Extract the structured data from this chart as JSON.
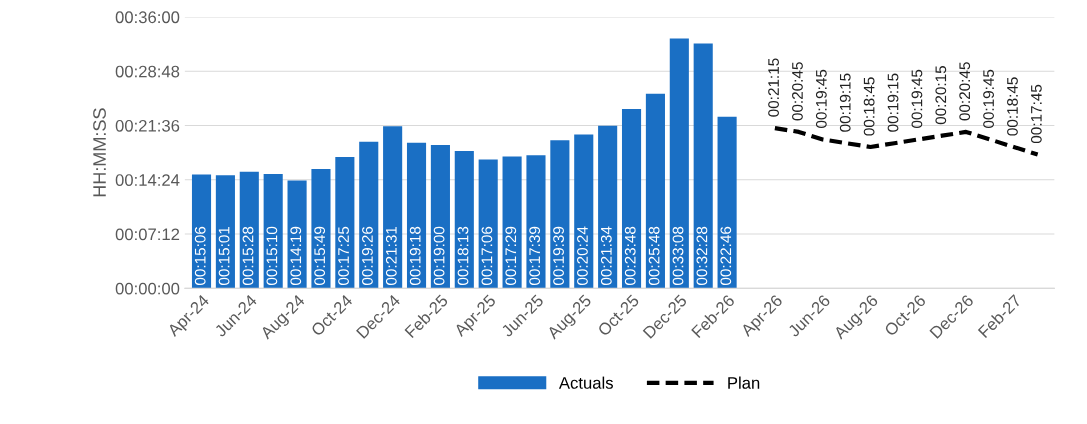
{
  "chart_data": {
    "type": "bar",
    "ylabel": "HH:MM:SS",
    "categories": [
      "Apr-24",
      null,
      "Jun-24",
      null,
      "Aug-24",
      null,
      "Oct-24",
      null,
      "Dec-24",
      null,
      "Feb-25",
      null,
      "Apr-25",
      null,
      "Jun-25",
      null,
      "Aug-25",
      null,
      "Oct-25",
      null,
      "Dec-25",
      null,
      "Feb-26",
      null,
      "Apr-26",
      null,
      "Jun-26",
      null,
      "Aug-26",
      null,
      "Oct-26",
      null,
      "Dec-26",
      null,
      "Feb-27",
      null
    ],
    "ylim": [
      0,
      2160
    ],
    "yticks": [
      {
        "value": 0,
        "label": "00:00:00"
      },
      {
        "value": 432,
        "label": "00:07:12"
      },
      {
        "value": 864,
        "label": "00:14:24"
      },
      {
        "value": 1296,
        "label": "00:21:36"
      },
      {
        "value": 1728,
        "label": "00:28:48"
      },
      {
        "value": 2160,
        "label": "00:36:00"
      }
    ],
    "grid": "y",
    "legend": "bottom",
    "series": [
      {
        "name": "Actuals",
        "color": "#1a6fc4",
        "values": [
          906,
          901,
          928,
          910,
          859,
          949,
          1045,
          1166,
          1291,
          1158,
          1140,
          1093,
          1026,
          1049,
          1059,
          1179,
          1224,
          1294,
          1428,
          1548,
          1988,
          1948,
          1366,
          null,
          null,
          null,
          null,
          null,
          null,
          null,
          null,
          null,
          null,
          null,
          null,
          null
        ],
        "value_labels": [
          "00:15:06",
          "00:15:01",
          "00:15:28",
          "00:15:10",
          "00:14:19",
          "00:15:49",
          "00:17:25",
          "00:19:26",
          "00:21:31",
          "00:19:18",
          "00:19:00",
          "00:18:13",
          "00:17:06",
          "00:17:29",
          "00:17:39",
          "00:19:39",
          "00:20:24",
          "00:21:34",
          "00:23:48",
          "00:25:48",
          "00:33:08",
          "00:32:28",
          "00:22:46",
          null,
          null,
          null,
          null,
          null,
          null,
          null,
          null,
          null,
          null,
          null,
          null,
          null
        ]
      },
      {
        "name": "Plan",
        "type": "line",
        "color": "#000000",
        "line_style": "dashed",
        "values": [
          null,
          null,
          null,
          null,
          null,
          null,
          null,
          null,
          null,
          null,
          null,
          null,
          null,
          null,
          null,
          null,
          null,
          null,
          null,
          null,
          null,
          null,
          null,
          null,
          1275,
          1245,
          1185,
          1155,
          1125,
          1155,
          1185,
          1215,
          1245,
          1185,
          1125,
          1065
        ],
        "value_labels": [
          null,
          null,
          null,
          null,
          null,
          null,
          null,
          null,
          null,
          null,
          null,
          null,
          null,
          null,
          null,
          null,
          null,
          null,
          null,
          null,
          null,
          null,
          null,
          null,
          "00:21:15",
          "00:20:45",
          "00:19:45",
          "00:19:15",
          "00:18:45",
          "00:19:15",
          "00:19:45",
          "00:20:15",
          "00:20:45",
          "00:19:45",
          "00:18:45",
          "00:17:45"
        ]
      }
    ]
  }
}
